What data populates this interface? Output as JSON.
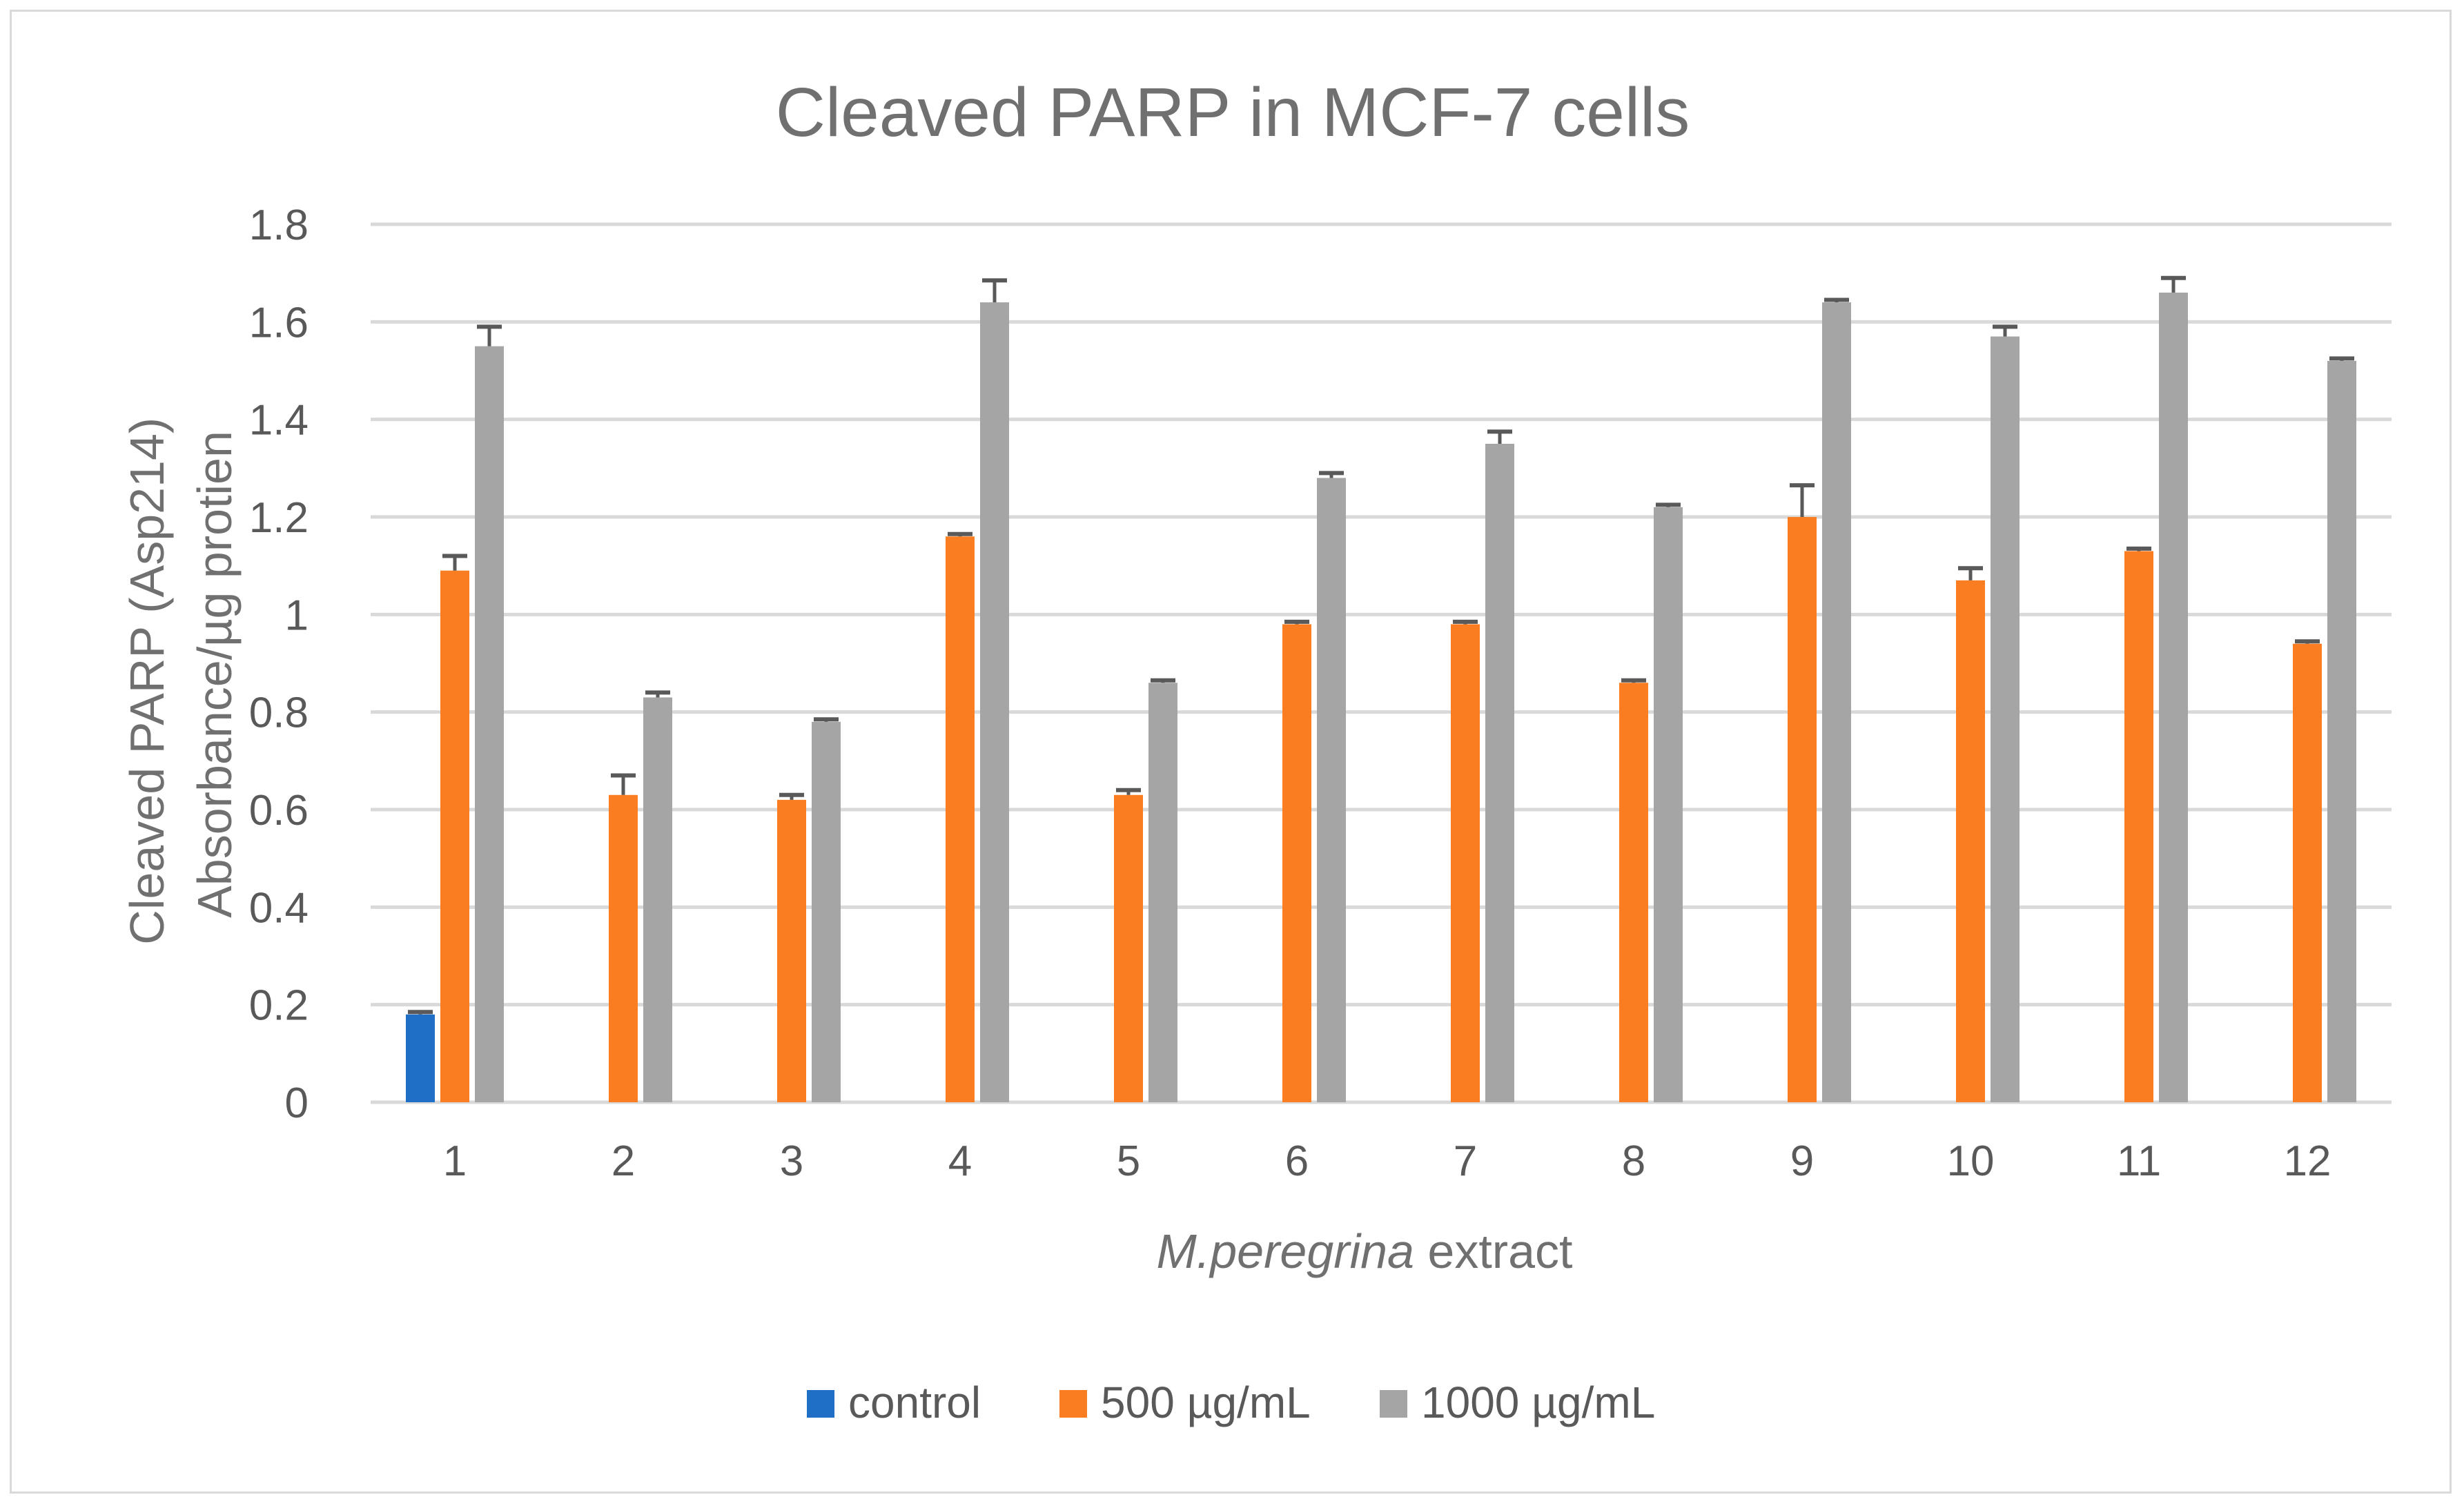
{
  "chart_data": {
    "type": "bar",
    "title": "Cleaved PARP in MCF-7 cells",
    "xlabel_italic": "M.peregrina",
    "xlabel_rest": " extract",
    "ylabel_line1": "Cleaved PARP (Asp214)",
    "ylabel_line2": "Absorbance/µg protien",
    "ylim": [
      0,
      1.8
    ],
    "yticks": [
      0,
      0.2,
      0.4,
      0.6,
      0.8,
      1,
      1.2,
      1.4,
      1.6,
      1.8
    ],
    "ytick_labels": [
      "0",
      "0.2",
      "0.4",
      "0.6",
      "0.8",
      "1",
      "1.2",
      "1.4",
      "1.6",
      "1.8"
    ],
    "grid": true,
    "legend_position": "bottom",
    "categories": [
      "1",
      "2",
      "3",
      "4",
      "5",
      "6",
      "7",
      "8",
      "9",
      "10",
      "11",
      "12"
    ],
    "series": [
      {
        "name": "control",
        "color": "#1f6fc6",
        "values": [
          0.18,
          null,
          null,
          null,
          null,
          null,
          null,
          null,
          null,
          null,
          null,
          null
        ],
        "errors": [
          0.005,
          null,
          null,
          null,
          null,
          null,
          null,
          null,
          null,
          null,
          null,
          null
        ]
      },
      {
        "name": "500 µg/mL",
        "color": "#fa7d22",
        "values": [
          1.09,
          0.63,
          0.62,
          1.16,
          0.63,
          0.98,
          0.98,
          0.86,
          1.2,
          1.07,
          1.13,
          0.94
        ],
        "errors": [
          0.03,
          0.04,
          0.01,
          0.005,
          0.01,
          0.005,
          0.005,
          0.005,
          0.065,
          0.025,
          0.005,
          0.005
        ]
      },
      {
        "name": "1000 µg/mL",
        "color": "#a5a5a5",
        "values": [
          1.55,
          0.83,
          0.78,
          1.64,
          0.86,
          1.28,
          1.35,
          1.22,
          1.64,
          1.57,
          1.66,
          1.52
        ],
        "errors": [
          0.04,
          0.01,
          0.005,
          0.045,
          0.005,
          0.01,
          0.025,
          0.005,
          0.005,
          0.02,
          0.03,
          0.005
        ]
      }
    ]
  },
  "colors": {
    "grid": "#d9d9d9",
    "error_bar": "#595959",
    "text": "#595959",
    "title": "#707070"
  }
}
